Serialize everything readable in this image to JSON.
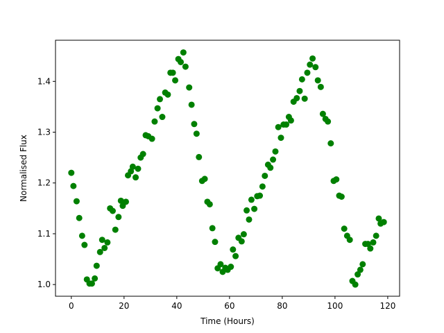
{
  "chart_data": {
    "type": "scatter",
    "title": "",
    "xlabel": "Time (Hours)",
    "ylabel": "Normalised Flux",
    "xlim": [
      -6,
      124.5
    ],
    "ylim": [
      0.977,
      1.481
    ],
    "xticks": [
      0,
      20,
      40,
      60,
      80,
      100,
      120
    ],
    "yticks": [
      1.0,
      1.1,
      1.2,
      1.3,
      1.4
    ],
    "ytick_labels": [
      "1.0",
      "1.1",
      "1.2",
      "1.3",
      "1.4"
    ],
    "grid": false,
    "marker_color": "#008000",
    "series": [
      {
        "points": [
          [
            0.0,
            1.22
          ],
          [
            0.8,
            1.194
          ],
          [
            2.0,
            1.164
          ],
          [
            3.0,
            1.131
          ],
          [
            4.1,
            1.096
          ],
          [
            5.0,
            1.078
          ],
          [
            5.9,
            1.01
          ],
          [
            6.9,
            1.002
          ],
          [
            7.8,
            1.002
          ],
          [
            8.9,
            1.012
          ],
          [
            9.6,
            1.037
          ],
          [
            10.9,
            1.064
          ],
          [
            11.7,
            1.088
          ],
          [
            12.6,
            1.072
          ],
          [
            13.7,
            1.083
          ],
          [
            14.7,
            1.15
          ],
          [
            15.7,
            1.145
          ],
          [
            16.7,
            1.108
          ],
          [
            17.9,
            1.133
          ],
          [
            18.8,
            1.165
          ],
          [
            19.5,
            1.155
          ],
          [
            20.7,
            1.163
          ],
          [
            21.5,
            1.215
          ],
          [
            22.6,
            1.223
          ],
          [
            23.3,
            1.232
          ],
          [
            24.4,
            1.211
          ],
          [
            25.3,
            1.228
          ],
          [
            26.3,
            1.25
          ],
          [
            27.2,
            1.257
          ],
          [
            28.2,
            1.294
          ],
          [
            29.2,
            1.292
          ],
          [
            30.6,
            1.287
          ],
          [
            31.6,
            1.321
          ],
          [
            32.7,
            1.347
          ],
          [
            33.6,
            1.365
          ],
          [
            34.5,
            1.33
          ],
          [
            35.6,
            1.378
          ],
          [
            36.6,
            1.374
          ],
          [
            37.6,
            1.417
          ],
          [
            38.5,
            1.417
          ],
          [
            39.4,
            1.402
          ],
          [
            40.6,
            1.444
          ],
          [
            41.5,
            1.438
          ],
          [
            42.5,
            1.457
          ],
          [
            43.3,
            1.429
          ],
          [
            44.7,
            1.388
          ],
          [
            45.6,
            1.354
          ],
          [
            46.6,
            1.316
          ],
          [
            47.5,
            1.297
          ],
          [
            48.4,
            1.251
          ],
          [
            49.6,
            1.204
          ],
          [
            50.6,
            1.208
          ],
          [
            51.6,
            1.163
          ],
          [
            52.5,
            1.158
          ],
          [
            53.5,
            1.111
          ],
          [
            54.5,
            1.084
          ],
          [
            55.5,
            1.032
          ],
          [
            56.6,
            1.04
          ],
          [
            57.4,
            1.025
          ],
          [
            58.4,
            1.033
          ],
          [
            59.3,
            1.029
          ],
          [
            60.5,
            1.035
          ],
          [
            61.3,
            1.069
          ],
          [
            62.3,
            1.056
          ],
          [
            63.4,
            1.092
          ],
          [
            64.6,
            1.085
          ],
          [
            65.4,
            1.099
          ],
          [
            66.5,
            1.146
          ],
          [
            67.4,
            1.128
          ],
          [
            68.3,
            1.167
          ],
          [
            69.4,
            1.149
          ],
          [
            70.5,
            1.174
          ],
          [
            71.5,
            1.175
          ],
          [
            72.5,
            1.193
          ],
          [
            73.4,
            1.214
          ],
          [
            74.6,
            1.236
          ],
          [
            75.5,
            1.23
          ],
          [
            76.5,
            1.246
          ],
          [
            77.4,
            1.262
          ],
          [
            78.5,
            1.31
          ],
          [
            79.5,
            1.289
          ],
          [
            80.5,
            1.315
          ],
          [
            81.5,
            1.315
          ],
          [
            82.5,
            1.33
          ],
          [
            83.3,
            1.323
          ],
          [
            84.3,
            1.36
          ],
          [
            85.5,
            1.367
          ],
          [
            86.6,
            1.381
          ],
          [
            87.5,
            1.404
          ],
          [
            88.5,
            1.366
          ],
          [
            89.5,
            1.417
          ],
          [
            90.5,
            1.433
          ],
          [
            91.5,
            1.445
          ],
          [
            92.6,
            1.428
          ],
          [
            93.5,
            1.402
          ],
          [
            94.6,
            1.389
          ],
          [
            95.4,
            1.336
          ],
          [
            96.4,
            1.326
          ],
          [
            97.3,
            1.321
          ],
          [
            98.4,
            1.278
          ],
          [
            99.5,
            1.204
          ],
          [
            100.5,
            1.207
          ],
          [
            101.6,
            1.175
          ],
          [
            102.5,
            1.173
          ],
          [
            103.5,
            1.11
          ],
          [
            104.6,
            1.096
          ],
          [
            105.6,
            1.088
          ],
          [
            106.6,
            1.007
          ],
          [
            107.7,
            1.0
          ],
          [
            108.6,
            1.02
          ],
          [
            109.6,
            1.029
          ],
          [
            110.5,
            1.04
          ],
          [
            111.5,
            1.08
          ],
          [
            112.5,
            1.08
          ],
          [
            113.4,
            1.071
          ],
          [
            114.5,
            1.083
          ],
          [
            115.6,
            1.096
          ],
          [
            116.6,
            1.13
          ],
          [
            117.3,
            1.12
          ],
          [
            118.5,
            1.123
          ]
        ]
      }
    ]
  }
}
